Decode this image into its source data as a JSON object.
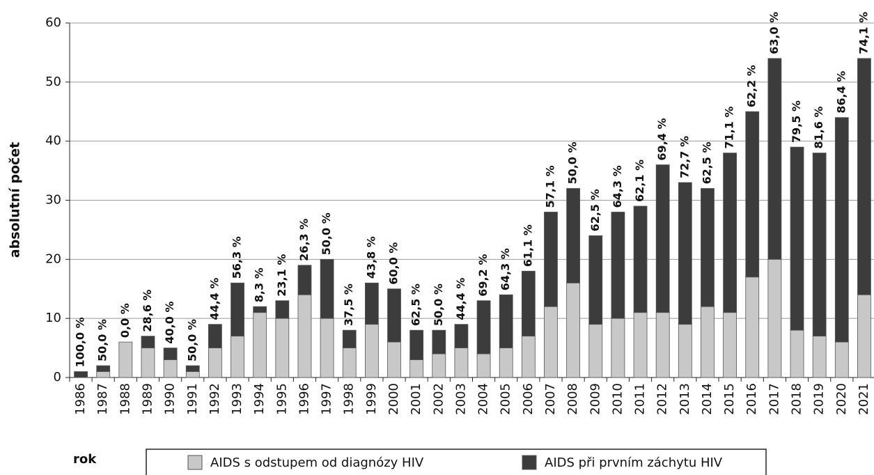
{
  "chart_data": {
    "type": "stacked_bar",
    "y_label": "absolutní počet",
    "x_label": "rok",
    "categories": [
      "1986",
      "1987",
      "1988",
      "1989",
      "1990",
      "1991",
      "1992",
      "1993",
      "1994",
      "1995",
      "1996",
      "1997",
      "1998",
      "1999",
      "2000",
      "2001",
      "2002",
      "2003",
      "2004",
      "2005",
      "2006",
      "2007",
      "2008",
      "2009",
      "2010",
      "2011",
      "2012",
      "2013",
      "2014",
      "2015",
      "2016",
      "2017",
      "2018",
      "2019",
      "2020",
      "2021"
    ],
    "series": [
      {
        "name": "AIDS s odstupem od diagnózy HIV",
        "color": "#c8c8c8",
        "values": [
          0,
          1,
          6,
          5,
          3,
          1,
          5,
          7,
          11,
          10,
          14,
          10,
          5,
          9,
          6,
          3,
          4,
          5,
          4,
          5,
          7,
          12,
          16,
          9,
          10,
          11,
          11,
          9,
          12,
          11,
          17,
          20,
          8,
          7,
          6,
          14
        ]
      },
      {
        "name": "AIDS při prvním záchytu HIV",
        "color": "#3c3c3c",
        "values": [
          1,
          1,
          0,
          2,
          2,
          1,
          4,
          9,
          1,
          3,
          5,
          10,
          3,
          7,
          9,
          5,
          4,
          4,
          9,
          9,
          11,
          16,
          16,
          15,
          18,
          18,
          25,
          24,
          20,
          27,
          28,
          34,
          31,
          31,
          38,
          40
        ]
      }
    ],
    "bar_labels": [
      "100,0 %",
      "50,0 %",
      "0,0 %",
      "28,6 %",
      "40,0 %",
      "50,0 %",
      "44,4 %",
      "56,3 %",
      "8,3 %",
      "23,1 %",
      "26,3 %",
      "50,0 %",
      "37,5 %",
      "43,8 %",
      "60,0 %",
      "62,5 %",
      "50,0 %",
      "44,4 %",
      "69,2 %",
      "64,3 %",
      "61,1 %",
      "57,1 %",
      "50,0 %",
      "62,5 %",
      "64,3 %",
      "62,1 %",
      "69,4 %",
      "72,7 %",
      "62,5 %",
      "71,1 %",
      "62,2 %",
      "63,0 %",
      "79,5 %",
      "81,6 %",
      "86,4 %",
      "74,1 %"
    ],
    "ylim": [
      0,
      60
    ],
    "yticks": [
      0,
      10,
      20,
      30,
      40,
      50,
      60
    ],
    "grid": true
  }
}
